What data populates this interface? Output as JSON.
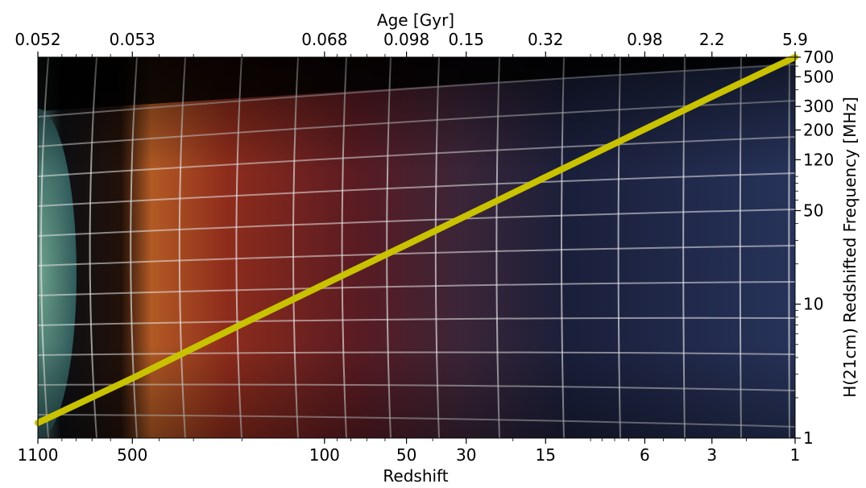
{
  "chart_data": {
    "type": "line",
    "x_scale": "log",
    "x_reversed": true,
    "y_scale": "log",
    "xlim": [
      1100,
      1
    ],
    "ylim": [
      1,
      700
    ],
    "xlabel": "Redshift",
    "ylabel": "H(21cm) Redshifted Frequency [MHz]",
    "x_ticks": [
      1100,
      500,
      100,
      50,
      30,
      15,
      6,
      3,
      1
    ],
    "x_tick_labels": [
      "1100",
      "500",
      "100",
      "50",
      "30",
      "15",
      "6",
      "3",
      "1"
    ],
    "y_ticks": [
      1,
      10,
      50,
      120,
      200,
      300,
      500,
      700
    ],
    "y_tick_labels": [
      "1",
      "10",
      "50",
      "120",
      "200",
      "300",
      "500",
      "700"
    ],
    "top_axis": {
      "label": "Age [Gyr]",
      "tick_redshifts": [
        1100,
        500,
        100,
        50,
        30,
        15,
        6,
        3,
        1
      ],
      "tick_labels": [
        "0.052",
        "0.053",
        "0.068",
        "0.098",
        "0.15",
        "0.32",
        "0.98",
        "2.2",
        "5.9"
      ]
    },
    "series": [
      {
        "color": "#c8c200",
        "x": [
          1100,
          500,
          200,
          100,
          50,
          30,
          15,
          6,
          3,
          1
        ],
        "y": [
          1.3,
          2.8,
          7.1,
          14.1,
          27.8,
          45.8,
          89,
          203,
          355,
          700
        ]
      }
    ],
    "background": "cosmic history illustration (CMB to galaxies) with curved perspective grid"
  }
}
